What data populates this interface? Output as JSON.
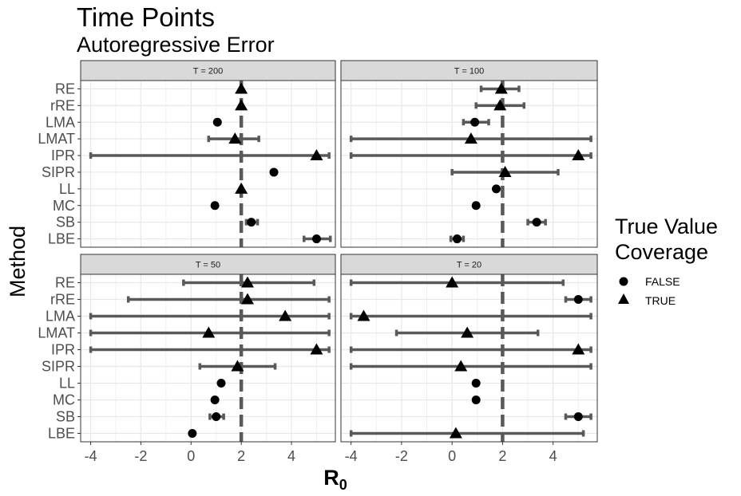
{
  "chart_data": {
    "type": "scatter",
    "title": "Time Points",
    "subtitle": "Autoregressive Error",
    "xlabel": "R",
    "xlabel_sub": "0",
    "ylabel": "Method",
    "xlim": [
      -4.4,
      5.75
    ],
    "xticks": [
      -4,
      -2,
      0,
      2,
      4
    ],
    "xtick_labels": [
      "-4",
      "-2",
      "0",
      "2",
      "4"
    ],
    "reference_line": 2,
    "methods": [
      "RE",
      "rRE",
      "LMA",
      "LMAT",
      "IPR",
      "SIPR",
      "LL",
      "MC",
      "SB",
      "LBE"
    ],
    "legend": {
      "title_line1": "True Value",
      "title_line2": "Coverage",
      "items": [
        {
          "label": "FALSE",
          "shape": "circle"
        },
        {
          "label": "TRUE",
          "shape": "triangle"
        }
      ],
      "placement": "right"
    },
    "grid": true,
    "colors": {
      "errorbar": "#595959",
      "point": "#000000",
      "refline": "#595959",
      "strip": "#d9d9d9"
    },
    "panels": [
      {
        "label": "T = 200",
        "points": [
          {
            "method": "RE",
            "est": 2.0,
            "lo": null,
            "hi": null,
            "covered": true
          },
          {
            "method": "rRE",
            "est": 2.0,
            "lo": null,
            "hi": null,
            "covered": true
          },
          {
            "method": "LMA",
            "est": 1.05,
            "lo": null,
            "hi": null,
            "covered": false
          },
          {
            "method": "LMAT",
            "est": 1.75,
            "lo": 0.7,
            "hi": 2.7,
            "covered": true
          },
          {
            "method": "IPR",
            "est": 5.0,
            "lo": -4.0,
            "hi": 5.5,
            "covered": true
          },
          {
            "method": "SIPR",
            "est": 3.3,
            "lo": null,
            "hi": null,
            "covered": false
          },
          {
            "method": "LL",
            "est": 2.0,
            "lo": null,
            "hi": null,
            "covered": true
          },
          {
            "method": "MC",
            "est": 0.95,
            "lo": null,
            "hi": null,
            "covered": false
          },
          {
            "method": "SB",
            "est": 2.4,
            "lo": 2.2,
            "hi": 2.65,
            "covered": false
          },
          {
            "method": "LBE",
            "est": 5.0,
            "lo": 4.5,
            "hi": 5.55,
            "covered": false
          }
        ]
      },
      {
        "label": "T = 100",
        "points": [
          {
            "method": "RE",
            "est": 1.95,
            "lo": 1.15,
            "hi": 2.65,
            "covered": true
          },
          {
            "method": "rRE",
            "est": 1.9,
            "lo": 0.95,
            "hi": 2.85,
            "covered": true
          },
          {
            "method": "LMA",
            "est": 0.9,
            "lo": 0.45,
            "hi": 1.45,
            "covered": false
          },
          {
            "method": "LMAT",
            "est": 0.75,
            "lo": -4.0,
            "hi": 5.5,
            "covered": true
          },
          {
            "method": "IPR",
            "est": 5.0,
            "lo": -4.0,
            "hi": 5.5,
            "covered": true
          },
          {
            "method": "SIPR",
            "est": 2.1,
            "lo": 0.0,
            "hi": 4.2,
            "covered": true
          },
          {
            "method": "LL",
            "est": 1.75,
            "lo": null,
            "hi": null,
            "covered": false
          },
          {
            "method": "MC",
            "est": 0.95,
            "lo": null,
            "hi": null,
            "covered": false
          },
          {
            "method": "SB",
            "est": 3.35,
            "lo": 3.0,
            "hi": 3.7,
            "covered": false
          },
          {
            "method": "LBE",
            "est": 0.2,
            "lo": -0.05,
            "hi": 0.45,
            "covered": false
          }
        ]
      },
      {
        "label": "T = 50",
        "points": [
          {
            "method": "RE",
            "est": 2.25,
            "lo": -0.3,
            "hi": 4.9,
            "covered": true
          },
          {
            "method": "rRE",
            "est": 2.25,
            "lo": -2.5,
            "hi": 5.5,
            "covered": true
          },
          {
            "method": "LMA",
            "est": 3.75,
            "lo": -4.0,
            "hi": 5.5,
            "covered": true
          },
          {
            "method": "LMAT",
            "est": 0.7,
            "lo": -4.0,
            "hi": 5.5,
            "covered": true
          },
          {
            "method": "IPR",
            "est": 5.0,
            "lo": -4.0,
            "hi": 5.5,
            "covered": true
          },
          {
            "method": "SIPR",
            "est": 1.85,
            "lo": 0.35,
            "hi": 3.35,
            "covered": true
          },
          {
            "method": "LL",
            "est": 1.2,
            "lo": null,
            "hi": null,
            "covered": false
          },
          {
            "method": "MC",
            "est": 0.95,
            "lo": null,
            "hi": null,
            "covered": false
          },
          {
            "method": "SB",
            "est": 1.0,
            "lo": 0.75,
            "hi": 1.3,
            "covered": false
          },
          {
            "method": "LBE",
            "est": 0.05,
            "lo": null,
            "hi": null,
            "covered": false
          }
        ]
      },
      {
        "label": "T = 20",
        "points": [
          {
            "method": "RE",
            "est": 0.0,
            "lo": -4.0,
            "hi": 4.4,
            "covered": true
          },
          {
            "method": "rRE",
            "est": 5.0,
            "lo": 4.5,
            "hi": 5.5,
            "covered": false
          },
          {
            "method": "LMA",
            "est": -3.5,
            "lo": -4.0,
            "hi": 5.5,
            "covered": true
          },
          {
            "method": "LMAT",
            "est": 0.6,
            "lo": -2.2,
            "hi": 3.4,
            "covered": true
          },
          {
            "method": "IPR",
            "est": 5.0,
            "lo": -4.0,
            "hi": 5.5,
            "covered": true
          },
          {
            "method": "SIPR",
            "est": 0.35,
            "lo": -4.0,
            "hi": 5.5,
            "covered": true
          },
          {
            "method": "LL",
            "est": 0.95,
            "lo": null,
            "hi": null,
            "covered": false
          },
          {
            "method": "MC",
            "est": 0.95,
            "lo": null,
            "hi": null,
            "covered": false
          },
          {
            "method": "SB",
            "est": 5.0,
            "lo": 4.5,
            "hi": 5.5,
            "covered": false
          },
          {
            "method": "LBE",
            "est": 0.15,
            "lo": -4.0,
            "hi": 5.2,
            "covered": true
          }
        ]
      }
    ]
  }
}
